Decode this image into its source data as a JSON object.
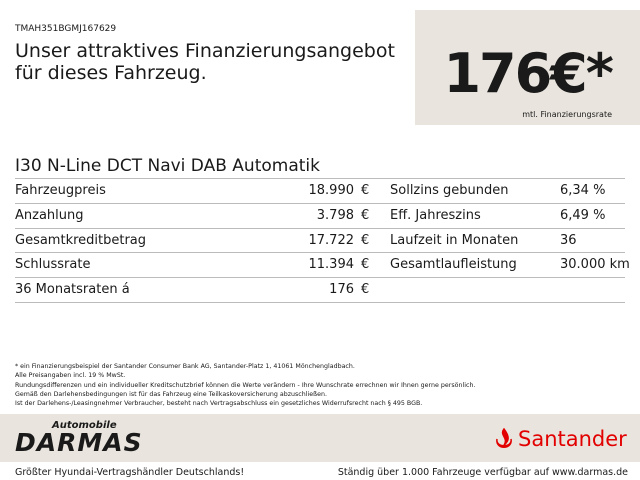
{
  "header": {
    "vin": "TMAH351BGMJ167629",
    "headline": "Unser attraktives Finanzierungsangebot für dieses Fahrzeug.",
    "price": "176€*",
    "price_label": "mtl. Finanzierungsrate"
  },
  "model": "I30 N-Line DCT Navi DAB  Automatik",
  "table": {
    "left": [
      {
        "label": "Fahrzeugpreis",
        "value": "18.990",
        "unit": "€"
      },
      {
        "label": "Anzahlung",
        "value": "3.798",
        "unit": "€"
      },
      {
        "label": "Gesamtkreditbetrag",
        "value": "17.722",
        "unit": "€"
      },
      {
        "label": "Schlussrate",
        "value": "11.394",
        "unit": "€"
      },
      {
        "label": "36 Monatsraten á",
        "value": "176",
        "unit": "€"
      }
    ],
    "right": [
      {
        "label": "Sollzins gebunden",
        "value": "6,34 %"
      },
      {
        "label": "Eff. Jahreszins",
        "value": "6,49 %"
      },
      {
        "label": "Laufzeit in Monaten",
        "value": "36"
      },
      {
        "label": "Gesamtlaufleistung",
        "value": "30.000 km"
      }
    ]
  },
  "notes": [
    "* ein Finanzierungsbeispiel der Santander Consumer Bank AG, Santander-Platz 1, 41061 Mönchengladbach.",
    "Alle Preisangaben incl. 19 % MwSt.",
    "Rundungsdifferenzen und ein individueller Kreditschutzbrief können die Werte verändern - Ihre Wunschrate errechnen wir Ihnen gerne persönlich.",
    "Gemäß den Darlehensbedingungen ist für das Fahrzeug eine Teilkaskoversicherung abzuschließen.",
    "Ist der Darlehens-/Leasingnehmer Verbraucher, besteht nach Vertragsabschluss ein gesetzliches Widerrufsrecht nach § 495 BGB."
  ],
  "footer": {
    "dealer_small": "Automobile",
    "dealer": "DARMAS",
    "bank": "Santander",
    "left_text": "Größter Hyundai-Vertragshändler Deutschlands!",
    "right_text": "Ständig über 1.000 Fahrzeuge verfügbar auf www.darmas.de"
  }
}
